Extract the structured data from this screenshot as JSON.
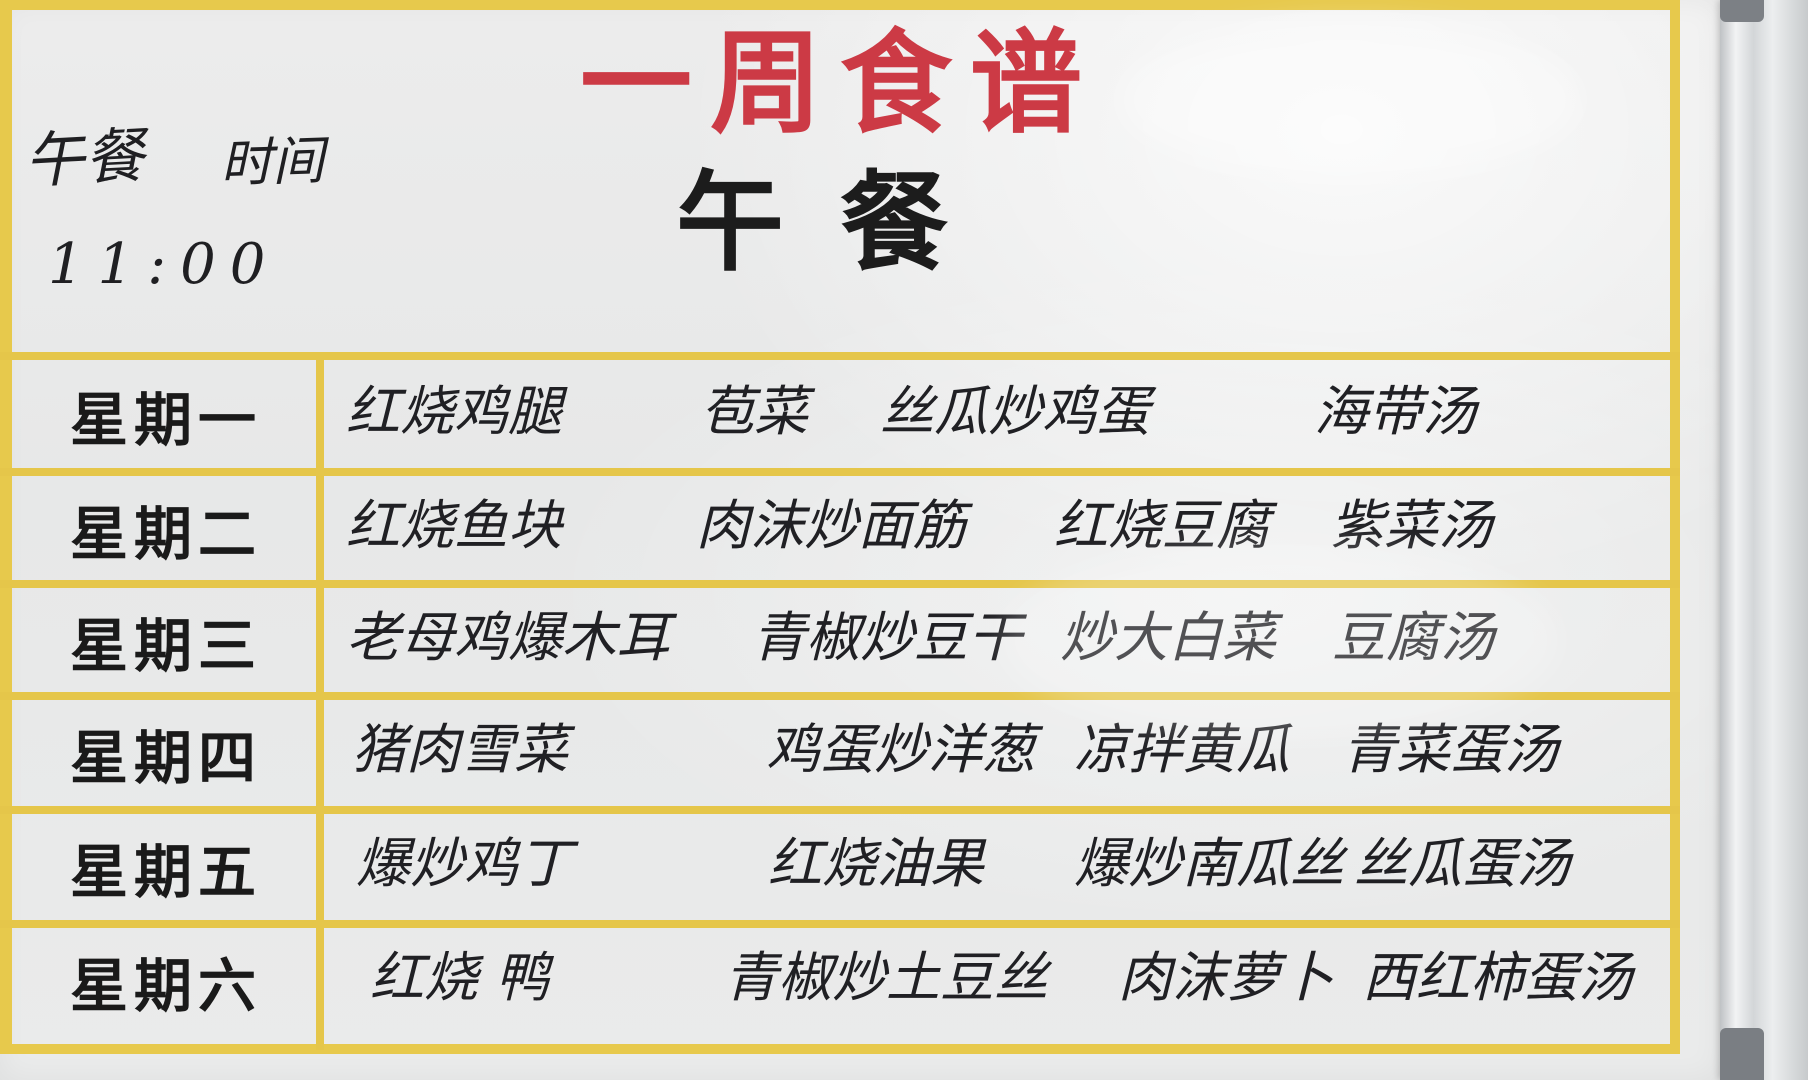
{
  "header": {
    "title": "一周食谱",
    "subtitle": "午餐"
  },
  "note": {
    "label_left": "午餐",
    "label_right": "时间",
    "time": "11:00"
  },
  "menu": [
    {
      "day": "星期一",
      "dishes": [
        "红烧鸡腿",
        "苞菜",
        "丝瓜炒鸡蛋",
        "海带汤"
      ]
    },
    {
      "day": "星期二",
      "dishes": [
        "红烧鱼块",
        "肉沫炒面筋",
        "红烧豆腐",
        "紫菜汤"
      ]
    },
    {
      "day": "星期三",
      "dishes": [
        "老母鸡爆木耳",
        "青椒炒豆干",
        "炒大白菜",
        "豆腐汤"
      ]
    },
    {
      "day": "星期四",
      "dishes": [
        "猪肉雪菜",
        "鸡蛋炒洋葱",
        "凉拌黄瓜",
        "青菜蛋汤"
      ]
    },
    {
      "day": "星期五",
      "dishes": [
        "爆炒鸡丁",
        "红烧油果",
        "爆炒南瓜丝",
        "丝瓜蛋汤"
      ]
    },
    {
      "day": "星期六",
      "dishes": [
        "红烧 鸭",
        "青椒炒土豆丝",
        "肉沫萝卜",
        "西红柿蛋汤"
      ]
    }
  ],
  "colors": {
    "frame_yellow": "#e7c94c",
    "title_red": "#cc3a45",
    "ink": "#1f1f22"
  }
}
